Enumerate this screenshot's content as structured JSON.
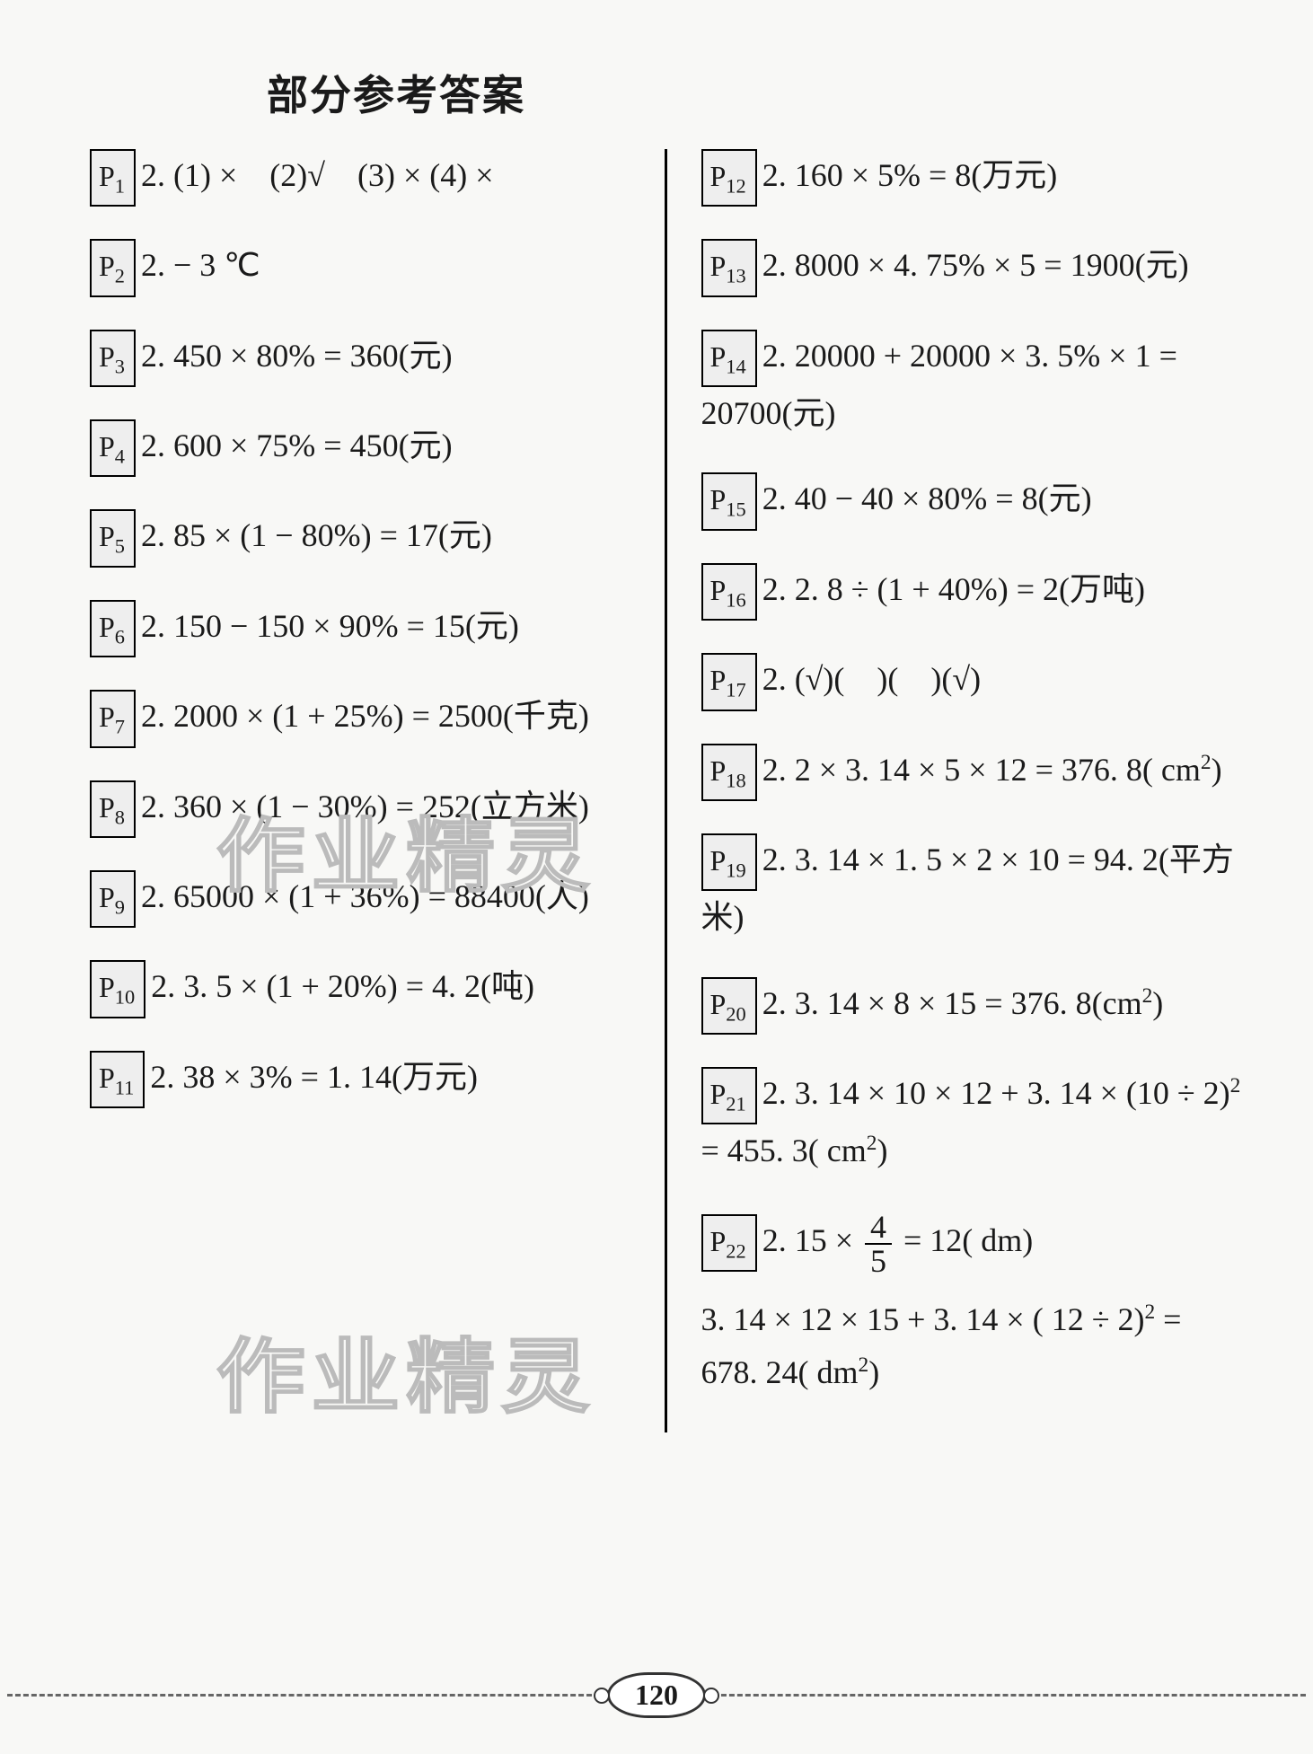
{
  "title": "部分参考答案",
  "page_number": "120",
  "watermark_text": "作业精灵",
  "background_color": "#f8f8f6",
  "text_color": "#1a1a1a",
  "title_fontsize": 46,
  "body_fontsize": 36,
  "left_column": [
    {
      "label": "P₁",
      "text": "2. (1) ×　(2)√　(3) ×  (4) ×"
    },
    {
      "label": "P₂",
      "text": "2. − 3 ℃"
    },
    {
      "label": "P₃",
      "text": "2. 450 × 80% = 360(元)"
    },
    {
      "label": "P₄",
      "text": "2. 600 × 75% = 450(元)"
    },
    {
      "label": "P₅",
      "text": "2. 85 × (1 − 80%) = 17(元)"
    },
    {
      "label": "P₆",
      "text": "2. 150 − 150 × 90% = 15(元)"
    },
    {
      "label": "P₇",
      "text": "2. 2000 × (1 + 25%) = 2500(千克)"
    },
    {
      "label": "P₈",
      "text": "2. 360 × (1 − 30%) = 252(立方米)"
    },
    {
      "label": "P₉",
      "text": "2. 65000 × (1 + 36%) = 88400(人)"
    },
    {
      "label": "P₁₀",
      "text": "2. 3. 5 × (1 + 20%) = 4. 2(吨)"
    },
    {
      "label": "P₁₁",
      "text": "2. 38 × 3% = 1. 14(万元)"
    }
  ],
  "right_column": [
    {
      "label": "P₁₂",
      "text": "2. 160 × 5% = 8(万元)"
    },
    {
      "label": "P₁₃",
      "text": "2. 8000 × 4. 75% × 5 = 1900(元)"
    },
    {
      "label": "P₁₄",
      "text": "2. 20000 + 20000 × 3. 5% × 1 = 20700(元)"
    },
    {
      "label": "P₁₅",
      "text": "2. 40 − 40 × 80% = 8(元)"
    },
    {
      "label": "P₁₆",
      "text": "2. 2. 8 ÷ (1 + 40%) = 2(万吨)"
    },
    {
      "label": "P₁₇",
      "text": "2. (√)(　)(　)(√)"
    },
    {
      "label": "P₁₈",
      "text": "2. 2 × 3. 14 × 5 × 12 = 376. 8( cm²)"
    },
    {
      "label": "P₁₉",
      "text": "2. 3. 14 × 1. 5 × 2 × 10 = 94. 2(平方米)"
    },
    {
      "label": "P₂₀",
      "text": "2. 3. 14 × 8 × 15 = 376. 8(cm²)"
    },
    {
      "label": "P₂₁",
      "text": "2. 3. 14 × 10 × 12 + 3. 14 × (10 ÷ 2)² = 455. 3( cm²)"
    },
    {
      "label": "P₂₂",
      "text_prefix": "2. 15 × ",
      "fraction": {
        "num": "4",
        "den": "5"
      },
      "text_suffix": " = 12( dm)",
      "extra": "3. 14 × 12 × 15 + 3. 14 × ( 12 ÷ 2)² = 678. 24( dm²)"
    }
  ]
}
